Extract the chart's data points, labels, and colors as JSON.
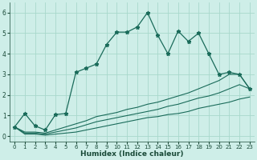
{
  "xlabel": "Humidex (Indice chaleur)",
  "background_color": "#ceeee8",
  "grid_color": "#a8d8cc",
  "line_color": "#1a6b5a",
  "x_ticks": [
    0,
    1,
    2,
    3,
    4,
    5,
    6,
    7,
    8,
    9,
    10,
    11,
    12,
    13,
    14,
    15,
    16,
    17,
    18,
    19,
    20,
    21,
    22,
    23
  ],
  "y_ticks": [
    0,
    1,
    2,
    3,
    4,
    5,
    6
  ],
  "ylim": [
    -0.25,
    6.5
  ],
  "xlim": [
    -0.5,
    23.5
  ],
  "main_line": [
    0.45,
    1.1,
    0.5,
    0.3,
    1.05,
    1.1,
    3.1,
    3.3,
    3.5,
    4.45,
    5.05,
    5.05,
    5.3,
    6.0,
    4.9,
    4.0,
    5.1,
    4.6,
    5.0,
    4.0,
    3.0,
    3.1,
    3.0,
    2.3
  ],
  "line2": [
    0.45,
    0.1,
    0.1,
    0.05,
    0.1,
    0.15,
    0.2,
    0.3,
    0.4,
    0.5,
    0.6,
    0.7,
    0.8,
    0.9,
    0.95,
    1.05,
    1.1,
    1.2,
    1.35,
    1.45,
    1.55,
    1.65,
    1.8,
    1.9
  ],
  "line3": [
    0.45,
    0.15,
    0.15,
    0.1,
    0.2,
    0.3,
    0.4,
    0.55,
    0.7,
    0.8,
    0.9,
    1.0,
    1.1,
    1.2,
    1.3,
    1.45,
    1.55,
    1.7,
    1.85,
    1.95,
    2.1,
    2.3,
    2.5,
    2.3
  ],
  "line4": [
    0.45,
    0.2,
    0.2,
    0.15,
    0.3,
    0.45,
    0.6,
    0.75,
    0.95,
    1.05,
    1.15,
    1.3,
    1.4,
    1.55,
    1.65,
    1.8,
    1.95,
    2.1,
    2.3,
    2.5,
    2.7,
    3.0,
    3.0,
    2.3
  ]
}
